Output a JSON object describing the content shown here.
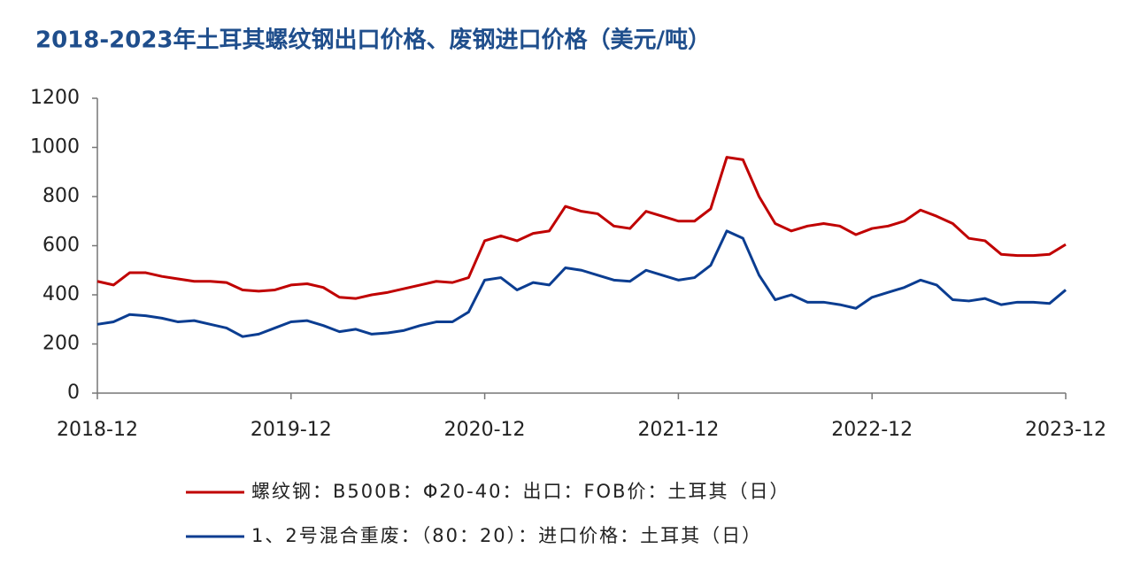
{
  "chart_data": {
    "type": "line",
    "title": "2018-2023年土耳其螺纹钢出口价格、废钢进口价格（美元/吨）",
    "x": [
      "2018-12",
      "2019-01",
      "2019-02",
      "2019-03",
      "2019-04",
      "2019-05",
      "2019-06",
      "2019-07",
      "2019-08",
      "2019-09",
      "2019-10",
      "2019-11",
      "2019-12",
      "2020-01",
      "2020-02",
      "2020-03",
      "2020-04",
      "2020-05",
      "2020-06",
      "2020-07",
      "2020-08",
      "2020-09",
      "2020-10",
      "2020-11",
      "2020-12",
      "2021-01",
      "2021-02",
      "2021-03",
      "2021-04",
      "2021-05",
      "2021-06",
      "2021-07",
      "2021-08",
      "2021-09",
      "2021-10",
      "2021-11",
      "2021-12",
      "2022-01",
      "2022-02",
      "2022-03",
      "2022-04",
      "2022-05",
      "2022-06",
      "2022-07",
      "2022-08",
      "2022-09",
      "2022-10",
      "2022-11",
      "2022-12",
      "2023-01",
      "2023-02",
      "2023-03",
      "2023-04",
      "2023-05",
      "2023-06",
      "2023-07",
      "2023-08",
      "2023-09",
      "2023-10",
      "2023-11",
      "2023-12"
    ],
    "series": [
      {
        "name": "螺纹钢：B500B：Φ20-40：出口：FOB价：土耳其（日）",
        "color": "#c00000",
        "values": [
          455,
          440,
          490,
          490,
          475,
          465,
          455,
          455,
          450,
          420,
          415,
          420,
          440,
          445,
          430,
          390,
          385,
          400,
          410,
          425,
          440,
          455,
          450,
          470,
          620,
          640,
          620,
          650,
          660,
          760,
          740,
          730,
          680,
          670,
          740,
          720,
          700,
          700,
          750,
          960,
          950,
          800,
          690,
          660,
          680,
          690,
          680,
          645,
          670,
          680,
          700,
          745,
          720,
          690,
          630,
          620,
          565,
          560,
          560,
          565,
          605
        ]
      },
      {
        "name": "1、2号混合重废：（80：20）：进口价格：土耳其（日）",
        "color": "#0b3d91",
        "values": [
          280,
          290,
          320,
          315,
          305,
          290,
          295,
          280,
          265,
          230,
          240,
          265,
          290,
          295,
          275,
          250,
          260,
          240,
          245,
          255,
          275,
          290,
          290,
          330,
          460,
          470,
          420,
          450,
          440,
          510,
          500,
          480,
          460,
          455,
          500,
          480,
          460,
          470,
          520,
          660,
          630,
          480,
          380,
          400,
          370,
          370,
          360,
          345,
          390,
          410,
          430,
          460,
          440,
          380,
          375,
          385,
          360,
          370,
          370,
          365,
          420
        ]
      }
    ],
    "xlim": [
      "2018-12",
      "2023-12"
    ],
    "xticks": [
      "2018-12",
      "2019-12",
      "2020-12",
      "2021-12",
      "2022-12",
      "2023-12"
    ],
    "ylim": [
      0,
      1200
    ],
    "yticks": [
      0,
      200,
      400,
      600,
      800,
      1000,
      1200
    ]
  }
}
